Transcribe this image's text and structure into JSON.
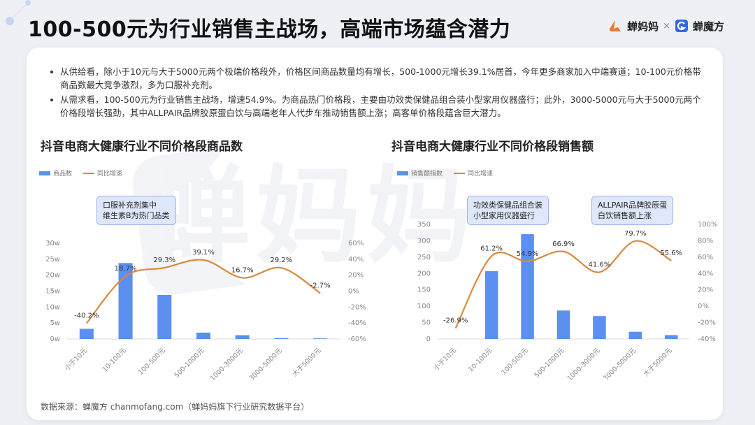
{
  "header": {
    "title": "100-500元为行业销售主战场，高端市场蕴含潜力",
    "brand_primary": "蝉妈妈",
    "brand_separator": "×",
    "brand_secondary": "蝉魔方"
  },
  "watermark_text": "蝉妈妈",
  "bullets": [
    "从供给看，除小于10元与大于5000元两个极端价格段外，价格区间商品数量均有增长，500-1000元增长39.1%居首，今年更多商家加入中端赛道；10-100元价格带商品数最大竞争激烈，多为口服补充剂。",
    "从需求看，100-500元为行业销售主战场，增速54.9%。为商品热门价格段，主要由功效类保健品组合装小型家用仪器盛行；此外，3000-5000元与大于5000元两个价格段增长强劲，其中ALLPAIR品牌胶原蛋白饮与高端老年人代步车推动销售额上涨；高客单价格段蕴含巨大潜力。"
  ],
  "source": "数据来源：蝉魔方 chanmofang.com（蝉妈妈旗下行业研究数据平台）",
  "colors": {
    "bar": "#5b8ff0",
    "line": "#d98a3d",
    "axis_text": "#888888"
  },
  "chart_data": [
    {
      "type": "bar",
      "title": "抖音电商大健康行业不同价格段商品数",
      "legend": [
        "商品数",
        "同比增速"
      ],
      "callout": [
        "口服补充剂集中",
        "维生素B为热门品类"
      ],
      "categories": [
        "小于10元",
        "10-100元",
        "100-500元",
        "500-1000元",
        "1000-3000元",
        "3000-5000元",
        "大于5000元"
      ],
      "series": [
        {
          "name": "商品数",
          "axis": "left",
          "values": [
            3.2,
            23.8,
            13.8,
            2.0,
            1.2,
            0.3,
            0.2
          ]
        },
        {
          "name": "同比增速",
          "axis": "right",
          "type": "line",
          "values": [
            -40.2,
            18.7,
            29.3,
            39.1,
            16.7,
            29.2,
            -2.7
          ],
          "labels": [
            "-40.2%",
            "18.7%",
            "29.3%",
            "39.1%",
            "16.7%",
            "29.2%",
            "-2.7%"
          ]
        }
      ],
      "y_left": {
        "ylim": [
          0,
          30
        ],
        "ticks": [
          0,
          5,
          10,
          15,
          20,
          25,
          30
        ],
        "tick_labels": [
          "0w",
          "5w",
          "10w",
          "15w",
          "20w",
          "25w",
          "30w"
        ]
      },
      "y_right": {
        "ylim": [
          -60,
          60
        ],
        "ticks": [
          -60,
          -40,
          -20,
          0,
          20,
          40,
          60
        ],
        "tick_labels": [
          "-60%",
          "-40%",
          "-20%",
          "0%",
          "20%",
          "40%",
          "60%"
        ]
      }
    },
    {
      "type": "bar",
      "title": "抖音电商大健康行业不同价格段销售额",
      "legend": [
        "销售额指数",
        "同比增速"
      ],
      "callouts": [
        [
          "功效类保健品组合装",
          "小型家用仪器盛行"
        ],
        [
          "ALLPAIR品牌胶原蛋",
          "白饮销售额上涨"
        ]
      ],
      "categories": [
        "小于10元",
        "10-100元",
        "100-500元",
        "500-1000元",
        "1000-3000元",
        "3000-5000元",
        "大于5000元"
      ],
      "series": [
        {
          "name": "销售额指数",
          "axis": "left",
          "values": [
            0,
            207,
            320,
            87,
            70,
            22,
            12
          ]
        },
        {
          "name": "同比增速",
          "axis": "right",
          "type": "line",
          "values": [
            -26.9,
            61.2,
            54.9,
            66.9,
            41.6,
            79.7,
            55.6
          ],
          "labels": [
            "-26.9%",
            "61.2%",
            "54.9%",
            "66.9%",
            "41.6%",
            "79.7%",
            "55.6%"
          ]
        }
      ],
      "y_left": {
        "ylim": [
          0,
          350
        ],
        "ticks": [
          0,
          50,
          100,
          150,
          200,
          250,
          300,
          350
        ],
        "tick_labels": [
          "0",
          "50",
          "100",
          "150",
          "200",
          "250",
          "300",
          "350"
        ]
      },
      "y_right": {
        "ylim": [
          -40,
          100
        ],
        "ticks": [
          -40,
          -20,
          0,
          20,
          40,
          60,
          80,
          100
        ],
        "tick_labels": [
          "-40%",
          "-20%",
          "0%",
          "20%",
          "40%",
          "60%",
          "80%",
          "100%"
        ]
      }
    }
  ]
}
